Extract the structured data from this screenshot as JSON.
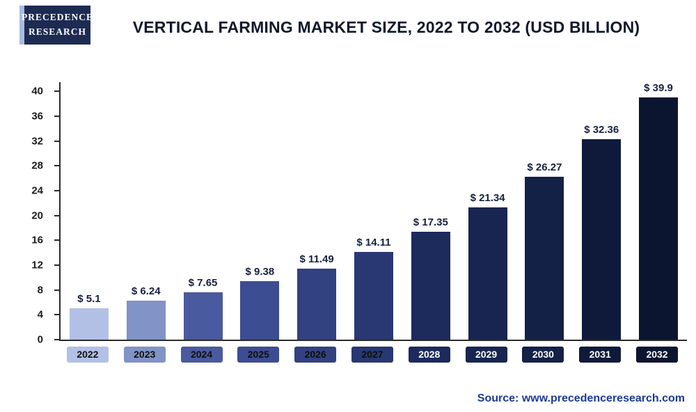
{
  "logo": {
    "line1": "Precedence",
    "line2": "Research"
  },
  "header": {
    "title": "Vertical Farming Market Size, 2022 to 2032 (USD Billion)"
  },
  "footer": {
    "source": "Source: www.precedenceresearch.com"
  },
  "chart_data": {
    "type": "bar",
    "title": "Vertical Farming Market Size, 2022 to 2032 (USD Billion)",
    "unit": "USD Billion",
    "categories": [
      "2022",
      "2023",
      "2024",
      "2025",
      "2026",
      "2027",
      "2028",
      "2029",
      "2030",
      "2031",
      "2032"
    ],
    "values": [
      5.1,
      6.24,
      7.65,
      9.38,
      11.49,
      14.11,
      17.35,
      21.34,
      26.27,
      32.36,
      39.9
    ],
    "value_labels": [
      "$ 5.1",
      "$ 6.24",
      "$ 7.65",
      "$ 9.38",
      "$ 11.49",
      "$ 14.11",
      "$ 17.35",
      "$ 21.34",
      "$ 26.27",
      "$ 32.36",
      "$ 39.9"
    ],
    "bar_colors": [
      "#b3c0e6",
      "#8193c7",
      "#4a5a9e",
      "#3d4d92",
      "#32417f",
      "#293872",
      "#1c2a5c",
      "#182550",
      "#142147",
      "#0f1a3a",
      "#0b1530"
    ],
    "box_text_colors": [
      "#0e0e0e",
      "#0e0e0e",
      "#0e0e0e",
      "#0e0e0e",
      "#0e0e0e",
      "#0e0e0e",
      "#ffffff",
      "#ffffff",
      "#ffffff",
      "#ffffff",
      "#ffffff"
    ],
    "yticks": [
      0,
      4,
      8,
      12,
      16,
      20,
      24,
      28,
      32,
      36,
      40
    ],
    "ylim": [
      0,
      40
    ],
    "grid": false,
    "legend": false
  }
}
